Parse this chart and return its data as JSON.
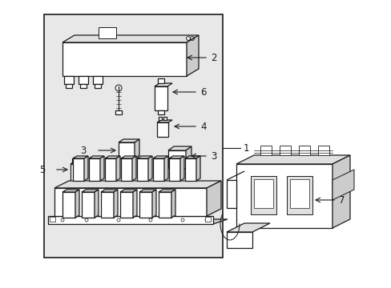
{
  "bg_color": "#ffffff",
  "line_color": "#1a1a1a",
  "fig_width": 4.89,
  "fig_height": 3.6,
  "dpi": 100,
  "inner_bg": "#e8e8e8"
}
